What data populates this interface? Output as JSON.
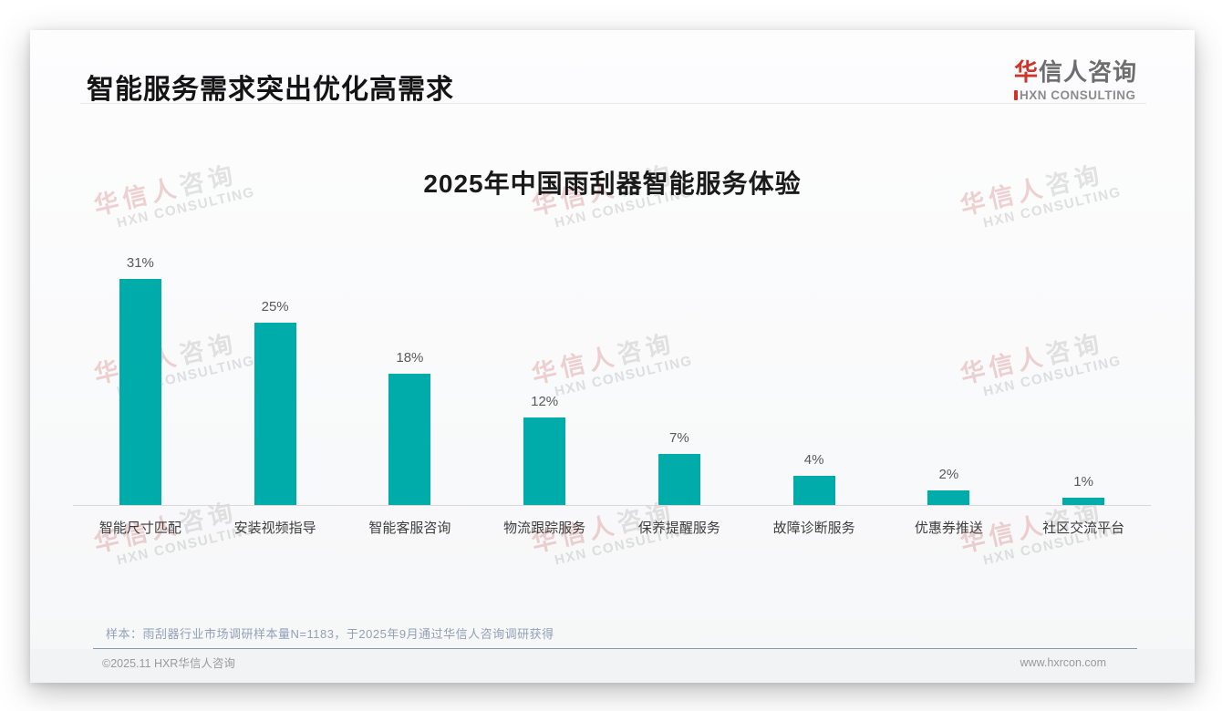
{
  "page": {
    "header": {
      "title": "智能服务需求突出优化高需求"
    },
    "logo": {
      "cn_red": "华",
      "cn_rest": "信人咨询",
      "en": "XN CONSULTING",
      "red_hex": "#cf342b"
    },
    "watermark": {
      "cn_pink": "华信人",
      "cn_gray": "咨询",
      "en": "HXN CONSULTING"
    },
    "sample_note": "样本：雨刮器行业市场调研样本量N=1183，于2025年9月通过华信人咨询调研获得",
    "footer": {
      "left": "©2025.11 HXR华信人咨询",
      "right": "www.hxrcon.com"
    }
  },
  "chart_data": {
    "type": "bar",
    "title": "2025年中国雨刮器智能服务体验",
    "categories": [
      "智能尺寸匹配",
      "安装视频指导",
      "智能客服咨询",
      "物流跟踪服务",
      "保养提醒服务",
      "故障诊断服务",
      "优惠券推送",
      "社区交流平台"
    ],
    "values": [
      31,
      25,
      18,
      12,
      7,
      4,
      2,
      1
    ],
    "data_labels": [
      "31%",
      "25%",
      "18%",
      "12%",
      "7%",
      "4%",
      "2%",
      "1%"
    ],
    "unit": "%",
    "bar_color": "#00aca9",
    "ylim": [
      0,
      35
    ],
    "xlabel": "",
    "ylabel": "",
    "grid": false,
    "legend": false
  }
}
